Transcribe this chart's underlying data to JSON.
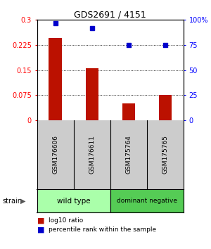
{
  "title": "GDS2691 / 4151",
  "samples": [
    "GSM176606",
    "GSM176611",
    "GSM175764",
    "GSM175765"
  ],
  "bar_values": [
    0.245,
    0.155,
    0.05,
    0.075
  ],
  "percentile_values": [
    97,
    92,
    75,
    75
  ],
  "bar_color": "#bb1100",
  "dot_color": "#0000cc",
  "ylim_left": [
    0,
    0.3
  ],
  "ylim_right": [
    0,
    100
  ],
  "yticks_left": [
    0,
    0.075,
    0.15,
    0.225,
    0.3
  ],
  "yticks_right": [
    0,
    25,
    50,
    75,
    100
  ],
  "ytick_labels_left": [
    "0",
    "0.075",
    "0.15",
    "0.225",
    "0.3"
  ],
  "ytick_labels_right": [
    "0",
    "25",
    "50",
    "75",
    "100%"
  ],
  "hlines": [
    0.075,
    0.15,
    0.225
  ],
  "groups": [
    {
      "label": "wild type",
      "indices": [
        0,
        1
      ],
      "color": "#aaffaa"
    },
    {
      "label": "dominant negative",
      "indices": [
        2,
        3
      ],
      "color": "#55cc55"
    }
  ],
  "strain_label": "strain",
  "legend_items": [
    {
      "color": "#bb1100",
      "label": "log10 ratio"
    },
    {
      "color": "#0000cc",
      "label": "percentile rank within the sample"
    }
  ],
  "bar_width": 0.35,
  "background_color": "#ffffff"
}
